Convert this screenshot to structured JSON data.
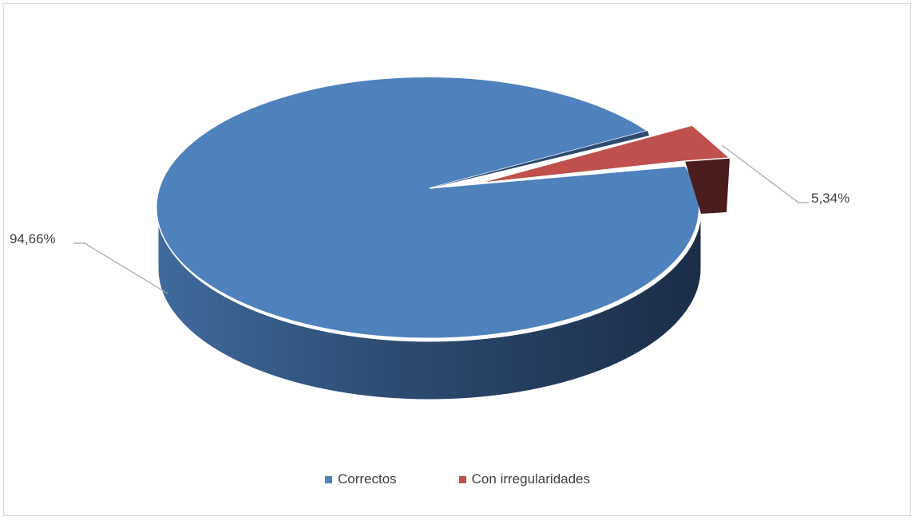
{
  "chart_data": {
    "type": "pie",
    "title": "",
    "slices": [
      {
        "label": "Correctos",
        "value": 94.66,
        "display": "94,66%",
        "color": "#4f81bd"
      },
      {
        "label": "Con irregularidades",
        "value": 5.34,
        "display": "5,34%",
        "color": "#c0504d"
      }
    ],
    "legend_position": "bottom",
    "style": "3d-exploded"
  }
}
